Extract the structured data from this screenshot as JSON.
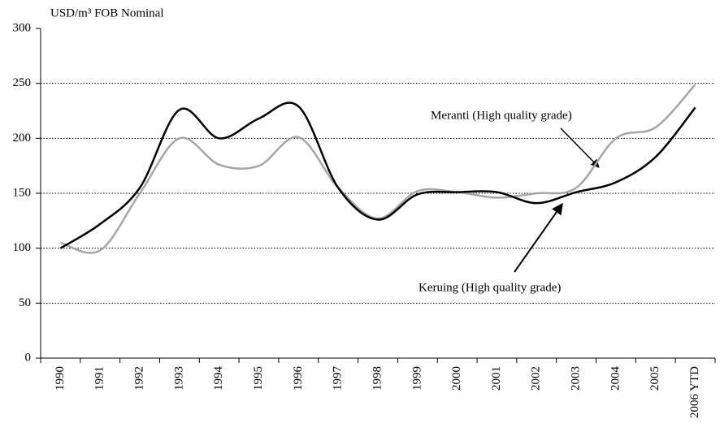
{
  "chart_data": {
    "type": "line",
    "y_label": "USD/m³ FOB Nominal",
    "categories": [
      "1990",
      "1991",
      "1992",
      "1993",
      "1994",
      "1995",
      "1996",
      "1997",
      "1998",
      "1999",
      "2000",
      "2001",
      "2002",
      "2003",
      "2004",
      "2005",
      "2006 YTD"
    ],
    "series": [
      {
        "name": "Meranti (High quality grade)",
        "color": "#a6a6a6",
        "values": [
          105,
          98,
          150,
          200,
          176,
          175,
          201,
          155,
          127,
          152,
          151,
          146,
          150,
          155,
          200,
          210,
          249
        ]
      },
      {
        "name": "Keruing (High quality grade)",
        "color": "#000000",
        "values": [
          100,
          122,
          155,
          226,
          200,
          218,
          229,
          155,
          126,
          149,
          151,
          151,
          141,
          151,
          160,
          183,
          228
        ]
      }
    ],
    "ylim": [
      0,
      300
    ],
    "yticks": [
      0,
      50,
      100,
      150,
      200,
      250,
      300
    ],
    "grid": true
  }
}
